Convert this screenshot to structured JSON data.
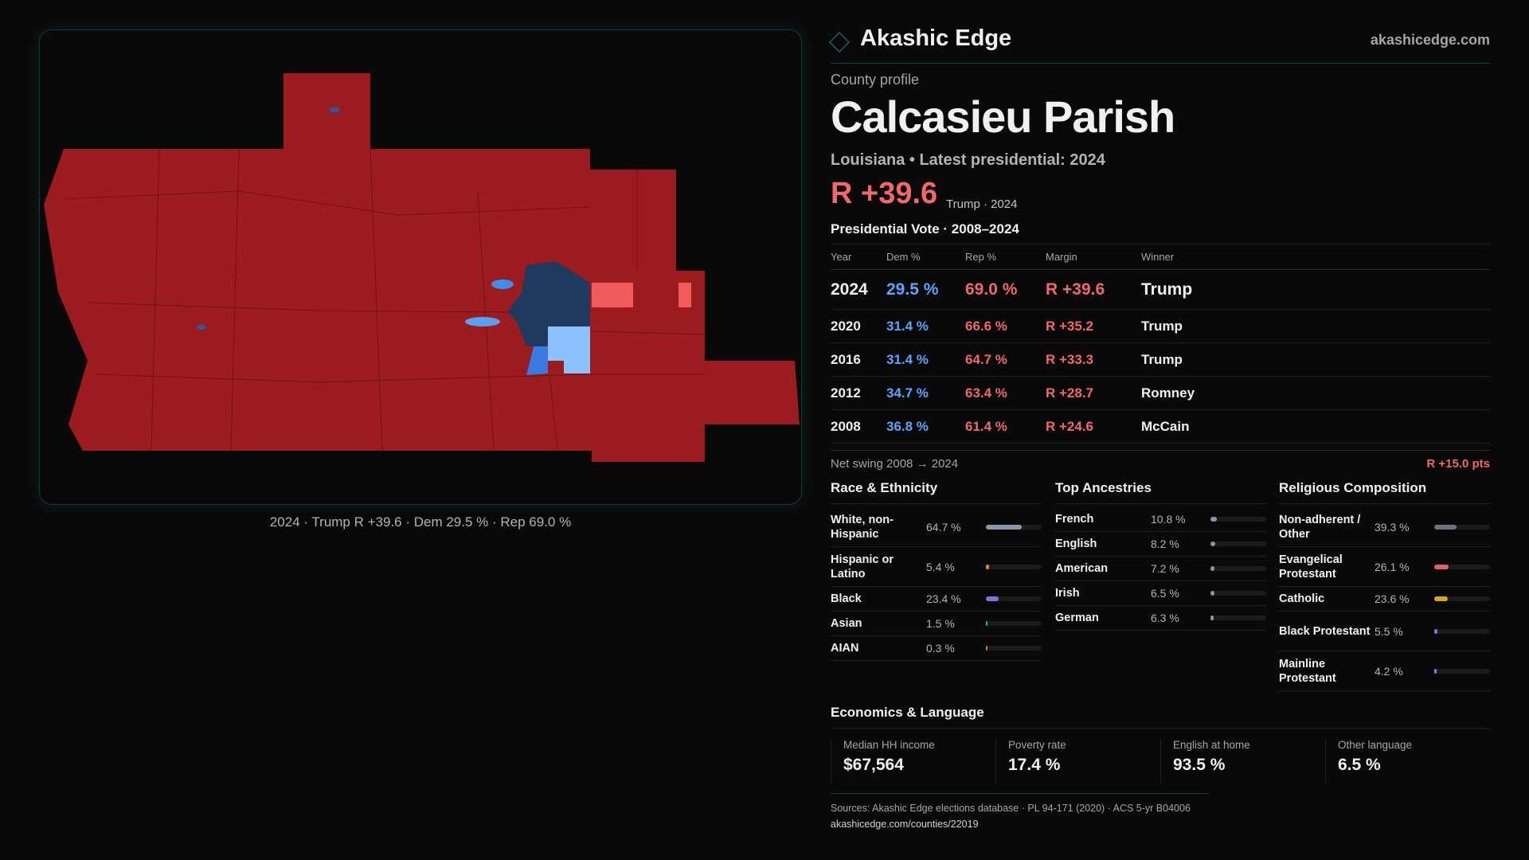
{
  "brand": {
    "name": "Akashic Edge",
    "site": "akashicedge.com"
  },
  "profile": {
    "eyebrow": "County profile",
    "name": "Calcasieu Parish",
    "subtitle": "Louisiana • Latest presidential: 2024",
    "headline_margin": "R +39.6",
    "headline_sub": "Trump · 2024"
  },
  "map": {
    "caption": "2024 · Trump R +39.6 · Dem 29.5 % · Rep 69.0 %",
    "colors": {
      "rep_strong": "#9b1b1e",
      "rep_lean": "#f05a5a",
      "dem_strong": "#1e3a5f",
      "dem_mid": "#3a7be0",
      "dem_lean": "#8cc0ff"
    }
  },
  "votes": {
    "title": "Presidential Vote · 2008–2024",
    "headers": [
      "Year",
      "Dem %",
      "Rep %",
      "Margin",
      "Winner"
    ],
    "rows": [
      {
        "year": "2024",
        "dem": "29.5 %",
        "rep": "69.0 %",
        "margin": "R +39.6",
        "winner": "Trump"
      },
      {
        "year": "2020",
        "dem": "31.4 %",
        "rep": "66.6 %",
        "margin": "R +35.2",
        "winner": "Trump"
      },
      {
        "year": "2016",
        "dem": "31.4 %",
        "rep": "64.7 %",
        "margin": "R +33.3",
        "winner": "Trump"
      },
      {
        "year": "2012",
        "dem": "34.7 %",
        "rep": "63.4 %",
        "margin": "R +28.7",
        "winner": "Romney"
      },
      {
        "year": "2008",
        "dem": "36.8 %",
        "rep": "61.4 %",
        "margin": "R +24.6",
        "winner": "McCain"
      }
    ]
  },
  "swing": {
    "label": "Net swing 2008 → 2024",
    "value": "R +15.0 pts"
  },
  "race": {
    "title": "Race & Ethnicity",
    "items": [
      {
        "label": "White, non-Hispanic",
        "value": "64.7 %",
        "pct": 64.7,
        "color": "#8a97aa"
      },
      {
        "label": "Hispanic or Latino",
        "value": "5.4 %",
        "pct": 5.4,
        "color": "#d98a0a"
      },
      {
        "label": "Black",
        "value": "23.4 %",
        "pct": 23.4,
        "color": "#8b6fd8"
      },
      {
        "label": "Asian",
        "value": "1.5 %",
        "pct": 1.5,
        "color": "#2fb38a"
      },
      {
        "label": "AIAN",
        "value": "0.3 %",
        "pct": 0.3,
        "color": "#c87a20"
      }
    ]
  },
  "ancestry": {
    "title": "Top Ancestries",
    "items": [
      {
        "label": "French",
        "value": "10.8 %",
        "pct": 10.8,
        "color": "#8a93a3"
      },
      {
        "label": "English",
        "value": "8.2 %",
        "pct": 8.2,
        "color": "#8a93a3"
      },
      {
        "label": "American",
        "value": "7.2 %",
        "pct": 7.2,
        "color": "#8a93a3"
      },
      {
        "label": "Irish",
        "value": "6.5 %",
        "pct": 6.5,
        "color": "#8a93a3"
      },
      {
        "label": "German",
        "value": "6.3 %",
        "pct": 6.3,
        "color": "#8a93a3"
      }
    ]
  },
  "religion": {
    "title": "Religious Composition",
    "items": [
      {
        "label": "Non-adherent / Other",
        "value": "39.3 %",
        "pct": 39.3,
        "color": "#6b7280"
      },
      {
        "label": "Evangelical Protestant",
        "value": "26.1 %",
        "pct": 26.1,
        "color": "#e0606a"
      },
      {
        "label": "Catholic",
        "value": "23.6 %",
        "pct": 23.6,
        "color": "#d9a520"
      },
      {
        "label": "Black Protestant",
        "value": "5.5 %",
        "pct": 5.5,
        "color": "#8b6fd8"
      },
      {
        "label": "Mainline Protestant",
        "value": "4.2 %",
        "pct": 4.2,
        "color": "#4a8fe8"
      }
    ]
  },
  "economics": {
    "title": "Economics & Language",
    "stats": [
      {
        "label": "Median HH income",
        "value": "$67,564"
      },
      {
        "label": "Poverty rate",
        "value": "17.4 %"
      },
      {
        "label": "English at home",
        "value": "93.5 %"
      },
      {
        "label": "Other language",
        "value": "6.5 %"
      }
    ]
  },
  "sources": {
    "text": "Sources: Akashic Edge elections database · PL 94-171 (2020) · ACS 5-yr B04006",
    "url": "akashicedge.com/counties/22019"
  }
}
